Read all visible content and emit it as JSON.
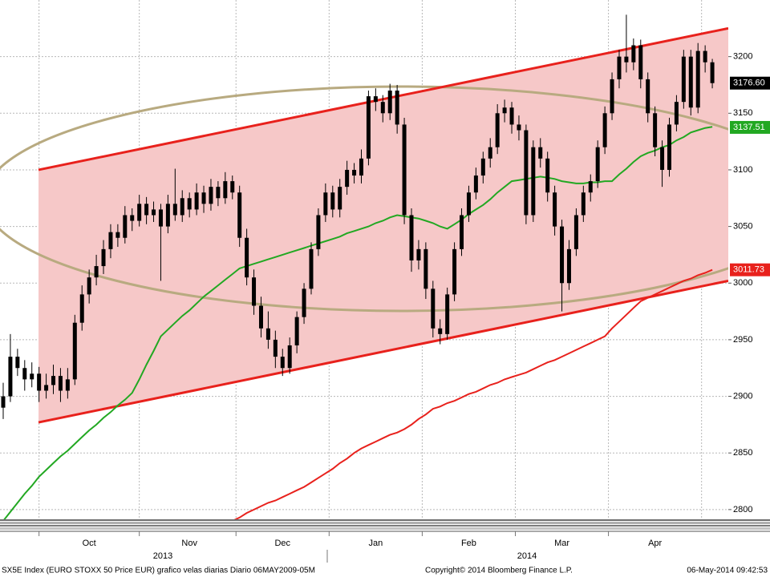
{
  "chart_data": {
    "type": "candlestick",
    "color": "#000000",
    "categories": [
      null,
      null,
      null,
      null,
      null,
      null,
      null,
      null,
      null,
      null,
      null,
      null,
      "Oct",
      null,
      null,
      null,
      null,
      null,
      null,
      null,
      null,
      null,
      null,
      null,
      null,
      null,
      "Nov",
      null,
      null,
      null,
      null,
      null,
      null,
      null,
      null,
      null,
      null,
      null,
      null,
      "Dec",
      null,
      null,
      null,
      null,
      null,
      null,
      null,
      null,
      null,
      null,
      null,
      null,
      "Jan",
      null,
      null,
      null,
      null,
      null,
      null,
      null,
      null,
      null,
      null,
      null,
      null,
      "Feb",
      null,
      null,
      null,
      null,
      null,
      null,
      null,
      null,
      null,
      null,
      null,
      null,
      "Mar",
      null,
      null,
      null,
      null,
      null,
      null,
      null,
      null,
      null,
      null,
      null,
      null,
      "Apr",
      null,
      null,
      null,
      null,
      null,
      null,
      null,
      null
    ],
    "year_labels": [
      "2013",
      "2014"
    ],
    "open": [
      2890,
      2900,
      2935,
      2925,
      2915,
      2920,
      2905,
      2910,
      2918,
      2905,
      2915,
      2965,
      2990,
      3005,
      3015,
      3030,
      3045,
      3040,
      3060,
      3055,
      3070,
      3060,
      3065,
      3050,
      3070,
      3060,
      3075,
      3065,
      3080,
      3070,
      3085,
      3075,
      3090,
      3080,
      3040,
      3005,
      2980,
      2960,
      2950,
      2935,
      2925,
      2945,
      2970,
      2995,
      3030,
      3060,
      3080,
      3065,
      3085,
      3100,
      3095,
      3110,
      3165,
      3160,
      3150,
      3170,
      3140,
      3060,
      3020,
      3030,
      2995,
      2960,
      2955,
      2990,
      3030,
      3060,
      3080,
      3095,
      3110,
      3120,
      3150,
      3155,
      3140,
      3135,
      3060,
      3120,
      3110,
      3080,
      3050,
      3000,
      3030,
      3060,
      3080,
      3090,
      3120,
      3150,
      3180,
      3200,
      3195,
      3210,
      3180,
      3150,
      3120,
      3100,
      3140,
      3160,
      3200,
      3155,
      3205,
      3195
    ],
    "high": [
      2912,
      2955,
      2942,
      2932,
      2930,
      2926,
      2920,
      2928,
      2925,
      2925,
      2972,
      2998,
      3012,
      3025,
      3038,
      3052,
      3052,
      3068,
      3066,
      3078,
      3076,
      3072,
      3070,
      3078,
      3101,
      3082,
      3080,
      3088,
      3086,
      3092,
      3090,
      3098,
      3095,
      3086,
      3048,
      3012,
      2988,
      2975,
      2958,
      2942,
      2952,
      2975,
      3000,
      3036,
      3066,
      3088,
      3086,
      3092,
      3108,
      3106,
      3118,
      3170,
      3172,
      3166,
      3176,
      3175,
      3146,
      3066,
      3038,
      3036,
      3002,
      2968,
      2996,
      3036,
      3066,
      3086,
      3102,
      3116,
      3128,
      3158,
      3162,
      3160,
      3148,
      3140,
      3126,
      3128,
      3116,
      3086,
      3056,
      3038,
      3066,
      3086,
      3096,
      3126,
      3156,
      3186,
      3206,
      3237,
      3216,
      3215,
      3186,
      3156,
      3126,
      3146,
      3166,
      3206,
      3206,
      3212,
      3210,
      3198
    ],
    "low": [
      2880,
      2895,
      2918,
      2905,
      2908,
      2895,
      2898,
      2902,
      2895,
      2898,
      2910,
      2958,
      2982,
      2998,
      3008,
      3022,
      3032,
      3035,
      3046,
      3050,
      3052,
      3054,
      3002,
      3044,
      3055,
      3054,
      3058,
      3060,
      3062,
      3064,
      3068,
      3070,
      3074,
      3032,
      2998,
      2972,
      2952,
      2942,
      2925,
      2918,
      2920,
      2938,
      2964,
      2990,
      3024,
      3054,
      3058,
      3058,
      3078,
      3088,
      3088,
      3104,
      3152,
      3142,
      3144,
      3132,
      3052,
      3010,
      3012,
      2986,
      2952,
      2946,
      2950,
      2984,
      3024,
      3054,
      3074,
      3088,
      3102,
      3114,
      3142,
      3132,
      3126,
      3052,
      3054,
      3102,
      3072,
      3042,
      2975,
      2994,
      3024,
      3054,
      3072,
      3084,
      3114,
      3144,
      3172,
      3186,
      3188,
      3172,
      3142,
      3112,
      3085,
      3094,
      3134,
      3154,
      3148,
      3150,
      3186,
      3172
    ],
    "close": [
      2900,
      2935,
      2925,
      2915,
      2920,
      2905,
      2910,
      2918,
      2905,
      2915,
      2965,
      2990,
      3005,
      3015,
      3030,
      3045,
      3040,
      3060,
      3055,
      3070,
      3060,
      3065,
      3050,
      3070,
      3060,
      3075,
      3065,
      3080,
      3070,
      3085,
      3075,
      3090,
      3080,
      3040,
      3005,
      2980,
      2960,
      2950,
      2935,
      2925,
      2945,
      2970,
      2995,
      3030,
      3060,
      3080,
      3065,
      3085,
      3100,
      3095,
      3110,
      3165,
      3160,
      3150,
      3170,
      3140,
      3060,
      3020,
      3030,
      2995,
      2960,
      2955,
      2990,
      3030,
      3060,
      3080,
      3095,
      3110,
      3120,
      3150,
      3155,
      3140,
      3135,
      3060,
      3120,
      3110,
      3080,
      3050,
      3000,
      3030,
      3060,
      3080,
      3090,
      3120,
      3150,
      3180,
      3200,
      3195,
      3210,
      3180,
      3150,
      3120,
      3100,
      3140,
      3160,
      3200,
      3155,
      3205,
      3195,
      3176.6
    ],
    "last_price": {
      "value": 3176.6,
      "label": "3176.60"
    },
    "lines": [
      {
        "color": "#22a822",
        "last_value": 3137.51,
        "values": [
          2790,
          2798,
          2806,
          2814,
          2821,
          2829,
          2835,
          2841,
          2847,
          2852,
          2858,
          2864,
          2870,
          2875,
          2881,
          2886,
          2892,
          2897,
          2903,
          2915,
          2928,
          2940,
          2953,
          2959,
          2965,
          2971,
          2976,
          2982,
          2988,
          2993,
          2998,
          3003,
          3008,
          3013,
          3015,
          3017,
          3019,
          3021,
          3023,
          3025,
          3027,
          3029,
          3031,
          3033,
          3035,
          3037,
          3039,
          3041,
          3044,
          3046,
          3048,
          3050,
          3053,
          3055,
          3058,
          3060,
          3059,
          3058,
          3057,
          3055,
          3053,
          3050,
          3048,
          3052,
          3056,
          3061,
          3065,
          3069,
          3074,
          3080,
          3085,
          3090,
          3091,
          3092,
          3093,
          3094,
          3093,
          3092,
          3090,
          3089,
          3088,
          3088,
          3089,
          3089,
          3090,
          3090,
          3096,
          3101,
          3107,
          3112,
          3115,
          3117,
          3120,
          3122,
          3126,
          3129,
          3133,
          3135,
          3137,
          3138
        ]
      },
      {
        "color": "#e8211c",
        "last_value": 3011.73,
        "values": [
          null,
          null,
          null,
          null,
          null,
          null,
          null,
          null,
          null,
          null,
          null,
          null,
          null,
          null,
          null,
          null,
          null,
          null,
          null,
          null,
          null,
          null,
          null,
          null,
          null,
          null,
          null,
          null,
          null,
          null,
          null,
          null,
          2790,
          2793,
          2797,
          2800,
          2803,
          2806,
          2808,
          2811,
          2814,
          2817,
          2820,
          2824,
          2828,
          2832,
          2836,
          2841,
          2845,
          2850,
          2854,
          2857,
          2860,
          2863,
          2866,
          2868,
          2871,
          2875,
          2880,
          2884,
          2889,
          2891,
          2894,
          2896,
          2899,
          2902,
          2904,
          2907,
          2910,
          2912,
          2915,
          2917,
          2919,
          2921,
          2924,
          2927,
          2930,
          2932,
          2935,
          2938,
          2941,
          2944,
          2947,
          2950,
          2953,
          2960,
          2966,
          2972,
          2978,
          2984,
          2987,
          2990,
          2993,
          2996,
          2999,
          3002,
          3004,
          3007,
          3009,
          3011.73
        ]
      }
    ],
    "trendlines": [
      {
        "color": "#e8211c",
        "values": [
          3100,
          3225
        ]
      },
      {
        "color": "#e8211c",
        "values": [
          2877,
          3002
        ]
      }
    ],
    "channel_fill": "#f6c8c8",
    "ylim": [
      2790,
      3250
    ],
    "yticks": [
      2800,
      2850,
      2900,
      2950,
      3000,
      3050,
      3100,
      3150,
      3200
    ],
    "grid": true,
    "footer": {
      "left": "SX5E Index (EURO STOXX 50 Price EUR) grafico velas diarias  Diario 06MAY2009-05M",
      "center": "Copyright© 2014 Bloomberg Finance L.P.",
      "right": "06-May-2014 09:42:53"
    }
  }
}
